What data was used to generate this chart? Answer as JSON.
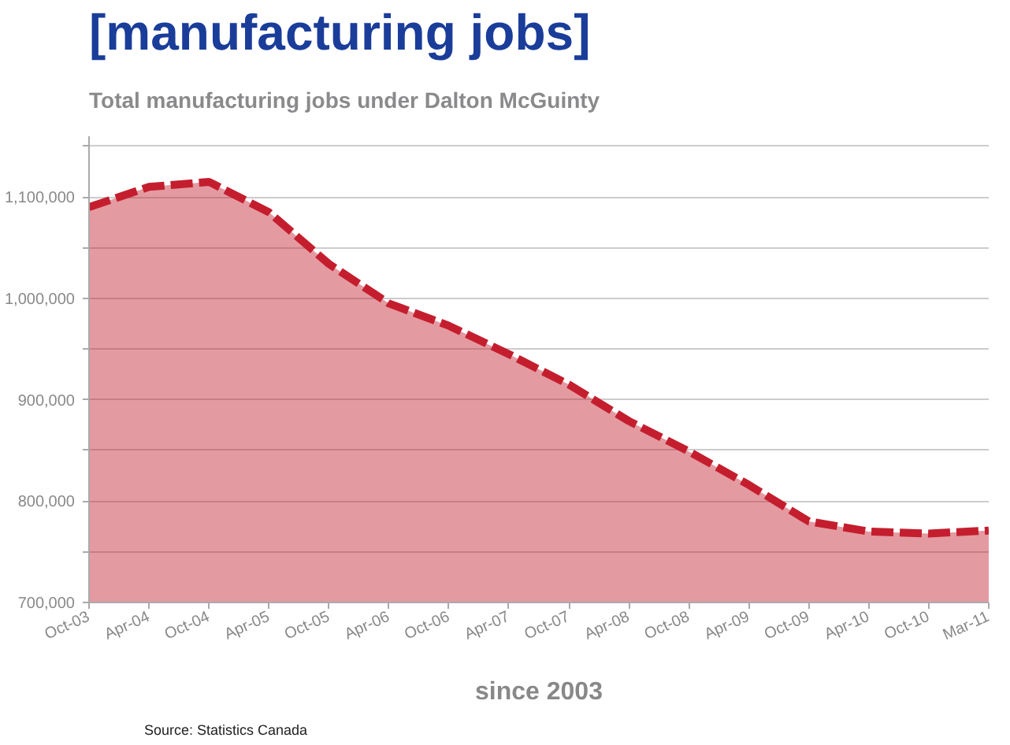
{
  "chart_data": {
    "type": "area",
    "title": "[manufacturing jobs]",
    "subtitle": "Total manufacturing jobs under Dalton McGuinty",
    "xlabel": "since 2003",
    "annotations": [
      "Source: Statistics Canada"
    ],
    "categories": [
      "Oct-03",
      "Apr-04",
      "Oct-04",
      "Apr-05",
      "Oct-05",
      "Apr-06",
      "Oct-06",
      "Apr-07",
      "Oct-07",
      "Apr-08",
      "Oct-08",
      "Apr-09",
      "Oct-09",
      "Apr-10",
      "Oct-10",
      "Mar-11"
    ],
    "series": [
      {
        "type": "area",
        "color": "#c41e2e",
        "line_style": "dashed",
        "values": [
          1090000,
          1110000,
          1115000,
          1085000,
          1034000,
          995000,
          973000,
          945000,
          915000,
          879000,
          849000,
          816000,
          780000,
          770000,
          768000,
          771000
        ]
      }
    ],
    "ylim": [
      700000,
      1160000
    ],
    "yticks": [
      {
        "value": 700000,
        "label": "700,000"
      },
      {
        "value": 750000,
        "label": null
      },
      {
        "value": 800000,
        "label": "800,000"
      },
      {
        "value": 850000,
        "label": null
      },
      {
        "value": 900000,
        "label": "900,000"
      },
      {
        "value": 950000,
        "label": null
      },
      {
        "value": 1000000,
        "label": "1,000,000"
      },
      {
        "value": 1050000,
        "label": null
      },
      {
        "value": 1100000,
        "label": "1,100,000"
      },
      {
        "value": 1150000,
        "label": null
      }
    ],
    "grid": "y"
  }
}
